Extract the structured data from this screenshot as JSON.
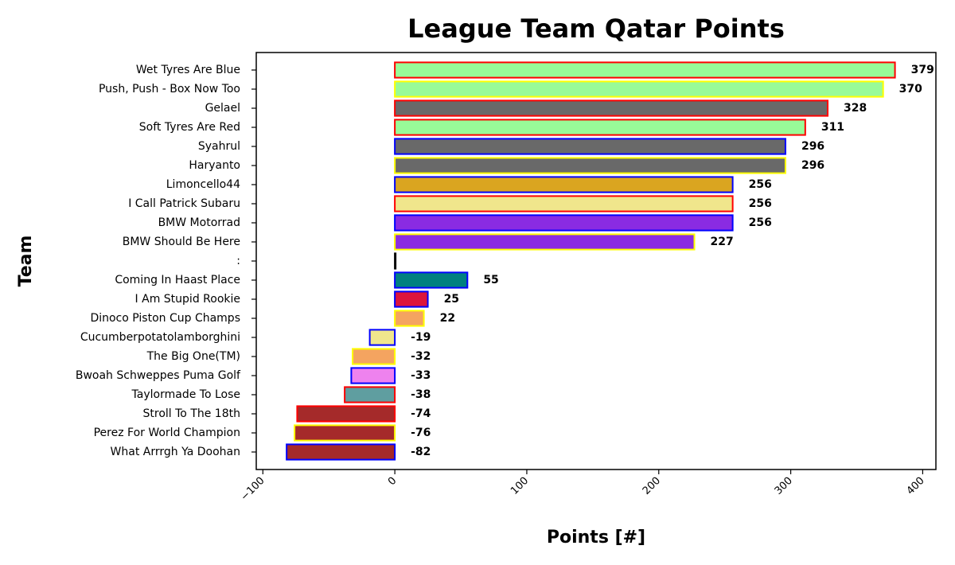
{
  "chart_data": {
    "type": "barh",
    "title": "League Team Qatar Points",
    "xlabel": "Points [#]",
    "ylabel": "Team",
    "categories": [
      "Wet Tyres Are Blue",
      "Push, Push - Box Now Too",
      "Gelael",
      "Soft Tyres Are Red",
      "Syahrul",
      "Haryanto",
      "Limoncello44",
      "I Call Patrick Subaru",
      "BMW Motorrad",
      "BMW Should Be Here",
      ":",
      "Coming In Haast Place",
      "I Am Stupid Rookie",
      "Dinoco Piston Cup Champs",
      "Cucumberpotatolamborghini",
      "The Big One(TM)",
      "Bwoah Schweppes Puma Golf",
      "Taylormade To Lose",
      "Stroll To The 18th",
      "Perez For World Champion",
      "What Arrrgh Ya Doohan"
    ],
    "values": [
      379,
      370,
      328,
      311,
      296,
      296,
      256,
      256,
      256,
      227,
      0,
      55,
      25,
      22,
      -19,
      -32,
      -33,
      -38,
      -74,
      -76,
      -82
    ],
    "value_labels": [
      "379",
      "370",
      "328",
      "311",
      "296",
      "296",
      "256",
      "256",
      "256",
      "227",
      null,
      "55",
      "25",
      "22",
      "-19",
      "-32",
      "-33",
      "-38",
      "-74",
      "-76",
      "-82"
    ],
    "colors": [
      "#98fb98",
      "#98fb98",
      "#696969",
      "#98fb98",
      "#696969",
      "#696969",
      "#daa520",
      "#f0e68c",
      "#8a2be2",
      "#8a2be2",
      "#000000",
      "#008080",
      "#dc143c",
      "#f4a460",
      "#f0e68c",
      "#f4a460",
      "#ee82ee",
      "#5f9ea0",
      "#a52a2a",
      "#a52a2a",
      "#a52a2a"
    ],
    "edgecolors": [
      "#ff0000",
      "#ffff00",
      "#ff0000",
      "#ff0000",
      "#0000ff",
      "#ffff00",
      "#0000ff",
      "#ff0000",
      "#0000ff",
      "#ffff00",
      "#000000",
      "#0000ff",
      "#0000ff",
      "#ffff00",
      "#0000ff",
      "#ffff00",
      "#0000ff",
      "#ff0000",
      "#ff0000",
      "#ffff00",
      "#0000ff"
    ],
    "xlim": [
      -105,
      410
    ],
    "xticks": [
      {
        "value": -100,
        "label": "−100"
      },
      0,
      100,
      200,
      300,
      400
    ]
  }
}
